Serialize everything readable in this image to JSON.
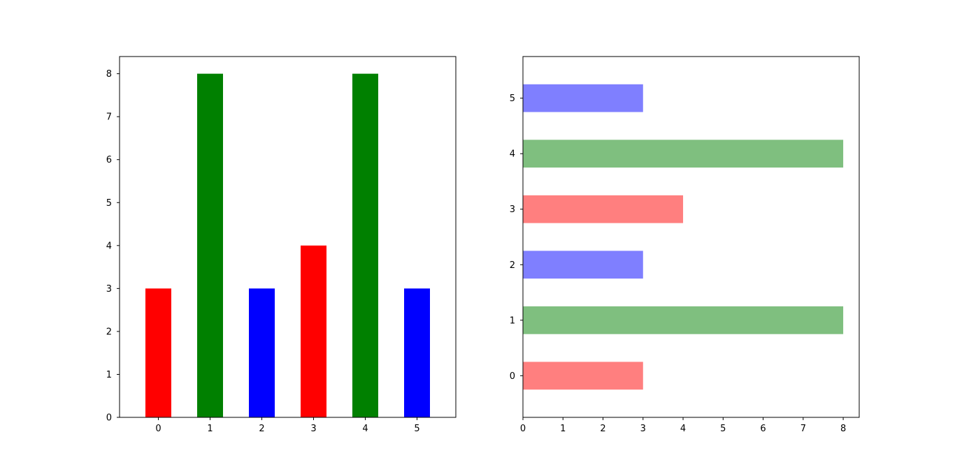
{
  "chart_data": [
    {
      "type": "bar",
      "orientation": "vertical",
      "categories": [
        "0",
        "1",
        "2",
        "3",
        "4",
        "5"
      ],
      "values": [
        3,
        8,
        3,
        4,
        8,
        3
      ],
      "colors": [
        "#ff0000",
        "#008000",
        "#0000ff",
        "#ff0000",
        "#008000",
        "#0000ff"
      ],
      "opacity": 1,
      "title": "",
      "xlabel": "",
      "ylabel": "",
      "ylim": [
        0,
        8.4
      ],
      "yticks": [
        "0",
        "1",
        "2",
        "3",
        "4",
        "5",
        "6",
        "7",
        "8"
      ],
      "grid": false
    },
    {
      "type": "bar",
      "orientation": "horizontal",
      "categories": [
        "0",
        "1",
        "2",
        "3",
        "4",
        "5"
      ],
      "values": [
        3,
        8,
        3,
        4,
        8,
        3
      ],
      "colors": [
        "#ff0000",
        "#008000",
        "#0000ff",
        "#ff0000",
        "#008000",
        "#0000ff"
      ],
      "opacity": 0.5,
      "title": "",
      "xlabel": "",
      "ylabel": "",
      "xlim": [
        0,
        8.4
      ],
      "xticks": [
        "0",
        "1",
        "2",
        "3",
        "4",
        "5",
        "6",
        "7",
        "8"
      ],
      "grid": false
    }
  ]
}
